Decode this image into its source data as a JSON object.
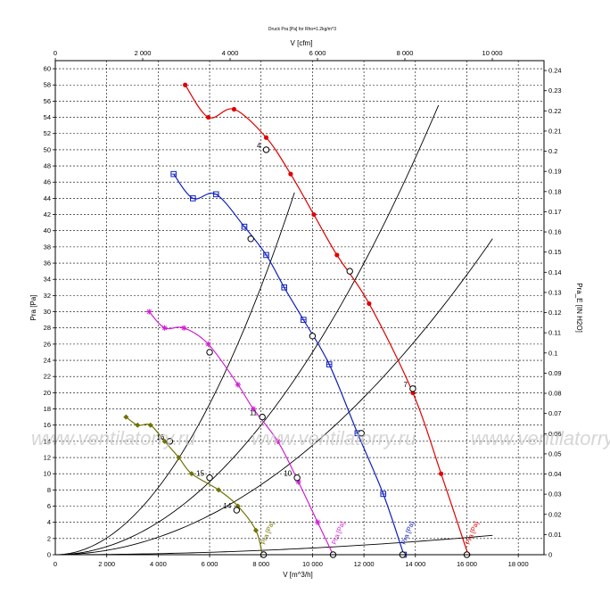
{
  "chart_data": {
    "type": "line",
    "title": "Druck Pra [Pa] for Rho=1.2kg/m^3",
    "xlabel": "V [m^3/h]",
    "ylabel": "Pra [Pa]",
    "x2label": "V [cfm]",
    "y2label": "Pra_E [IN H2O]",
    "xlim": [
      0,
      19000
    ],
    "ylim": [
      0,
      61
    ],
    "x2lim": [
      0,
      11183
    ],
    "y2lim": [
      0,
      0.2449
    ],
    "x_ticks": [
      "2 000",
      "4 000",
      "6 000",
      "8 000",
      "10 000",
      "12 000",
      "14 000",
      "16 000",
      "18 000"
    ],
    "x_tick_values": [
      2000,
      4000,
      6000,
      8000,
      10000,
      12000,
      14000,
      16000,
      18000
    ],
    "x2_ticks": [
      "0",
      "2 000",
      "4 000",
      "6 000",
      "8 000",
      "10 000"
    ],
    "x2_tick_values": [
      0,
      2000,
      4000,
      6000,
      8000,
      10000
    ],
    "y_ticks": [
      "0",
      "2",
      "4",
      "6",
      "8",
      "10",
      "12",
      "14",
      "16",
      "18",
      "20",
      "22",
      "24",
      "26",
      "28",
      "30",
      "32",
      "34",
      "36",
      "38",
      "40",
      "42",
      "44",
      "46",
      "48",
      "50",
      "52",
      "54",
      "56",
      "58",
      "60"
    ],
    "y2_ticks": [
      "0",
      "0.01",
      "0.02",
      "0.03",
      "0.04",
      "0.05",
      "0.06",
      "0.07",
      "0.08",
      "0.09",
      "0.1",
      "0.11",
      "0.12",
      "0.13",
      "0.14",
      "0.15",
      "0.16",
      "0.17",
      "0.18",
      "0.19",
      "0.2",
      "0.21",
      "0.22",
      "0.23",
      "0.24"
    ],
    "grid": true,
    "watermark": "www.ventilatorry.ru",
    "series": [
      {
        "name": "Pra [Pa]",
        "color": "#e00000",
        "marker": "circle",
        "x": [
          5050,
          5950,
          6950,
          8200,
          9150,
          10050,
          10950,
          12200,
          13900,
          15000,
          16050
        ],
        "y": [
          58,
          54,
          55,
          51.5,
          47,
          42,
          37,
          31,
          20,
          10,
          0
        ]
      },
      {
        "name": "Pra [Pa]",
        "color": "#1020c0",
        "marker": "square",
        "x": [
          4600,
          5350,
          6250,
          7350,
          8200,
          8900,
          9650,
          10650,
          11750,
          12750,
          13550
        ],
        "y": [
          47,
          44,
          44.5,
          40.5,
          37,
          33,
          29,
          23.5,
          15,
          7.5,
          0
        ]
      },
      {
        "name": "Pra [Pa]",
        "color": "#d020d0",
        "marker": "star",
        "x": [
          3650,
          4250,
          5000,
          5950,
          7100,
          7700,
          8650,
          9450,
          10200,
          10800
        ],
        "y": [
          30,
          28,
          28,
          26,
          21,
          18,
          14,
          9,
          4,
          0
        ]
      },
      {
        "name": "Pra [Pa]",
        "color": "#707000",
        "marker": "diamond",
        "x": [
          2750,
          3200,
          3700,
          4250,
          4800,
          5300,
          6350,
          7100,
          7800,
          8050
        ],
        "y": [
          17,
          16,
          16,
          14,
          12,
          10,
          8,
          6,
          3,
          0
        ]
      }
    ],
    "system_curves": [
      {
        "k": 5.17e-07,
        "x_end": 9300
      },
      {
        "k": 2.5e-07,
        "x_end": 14900
      },
      {
        "k": 1.35e-07,
        "x_end": 17000
      },
      {
        "k": 8.28e-09,
        "x_end": 17000
      }
    ],
    "operating_points": [
      {
        "x": 8200,
        "y": 50,
        "label": "4"
      },
      {
        "x": 7600,
        "y": 39,
        "label": ""
      },
      {
        "x": 6000,
        "y": 25,
        "label": ""
      },
      {
        "x": 4450,
        "y": 14,
        "label": "16"
      },
      {
        "x": 6000,
        "y": 9.5,
        "label": "15"
      },
      {
        "x": 7050,
        "y": 5.5,
        "label": "14"
      },
      {
        "x": 8100,
        "y": 0,
        "label": ""
      },
      {
        "x": 8050,
        "y": 17,
        "label": "11"
      },
      {
        "x": 10000,
        "y": 27,
        "label": ""
      },
      {
        "x": 11450,
        "y": 35,
        "label": ""
      },
      {
        "x": 9400,
        "y": 9.5,
        "label": "10"
      },
      {
        "x": 10800,
        "y": 0,
        "label": ""
      },
      {
        "x": 11900,
        "y": 15,
        "label": ""
      },
      {
        "x": 13900,
        "y": 20.5,
        "label": "7"
      },
      {
        "x": 13500,
        "y": 0,
        "label": ""
      },
      {
        "x": 16000,
        "y": 0,
        "label": ""
      }
    ],
    "curve_labels": [
      {
        "text": "Pra [Pa]",
        "x": 16100,
        "y": 1.2,
        "color": "#e00000"
      },
      {
        "text": "Pra [Pa]",
        "x": 13600,
        "y": 1.2,
        "color": "#1020c0"
      },
      {
        "text": "Pra [Pa]",
        "x": 10900,
        "y": 1.2,
        "color": "#d020d0"
      },
      {
        "text": "Pra [Pa]",
        "x": 8150,
        "y": 1.2,
        "color": "#707000"
      }
    ]
  }
}
